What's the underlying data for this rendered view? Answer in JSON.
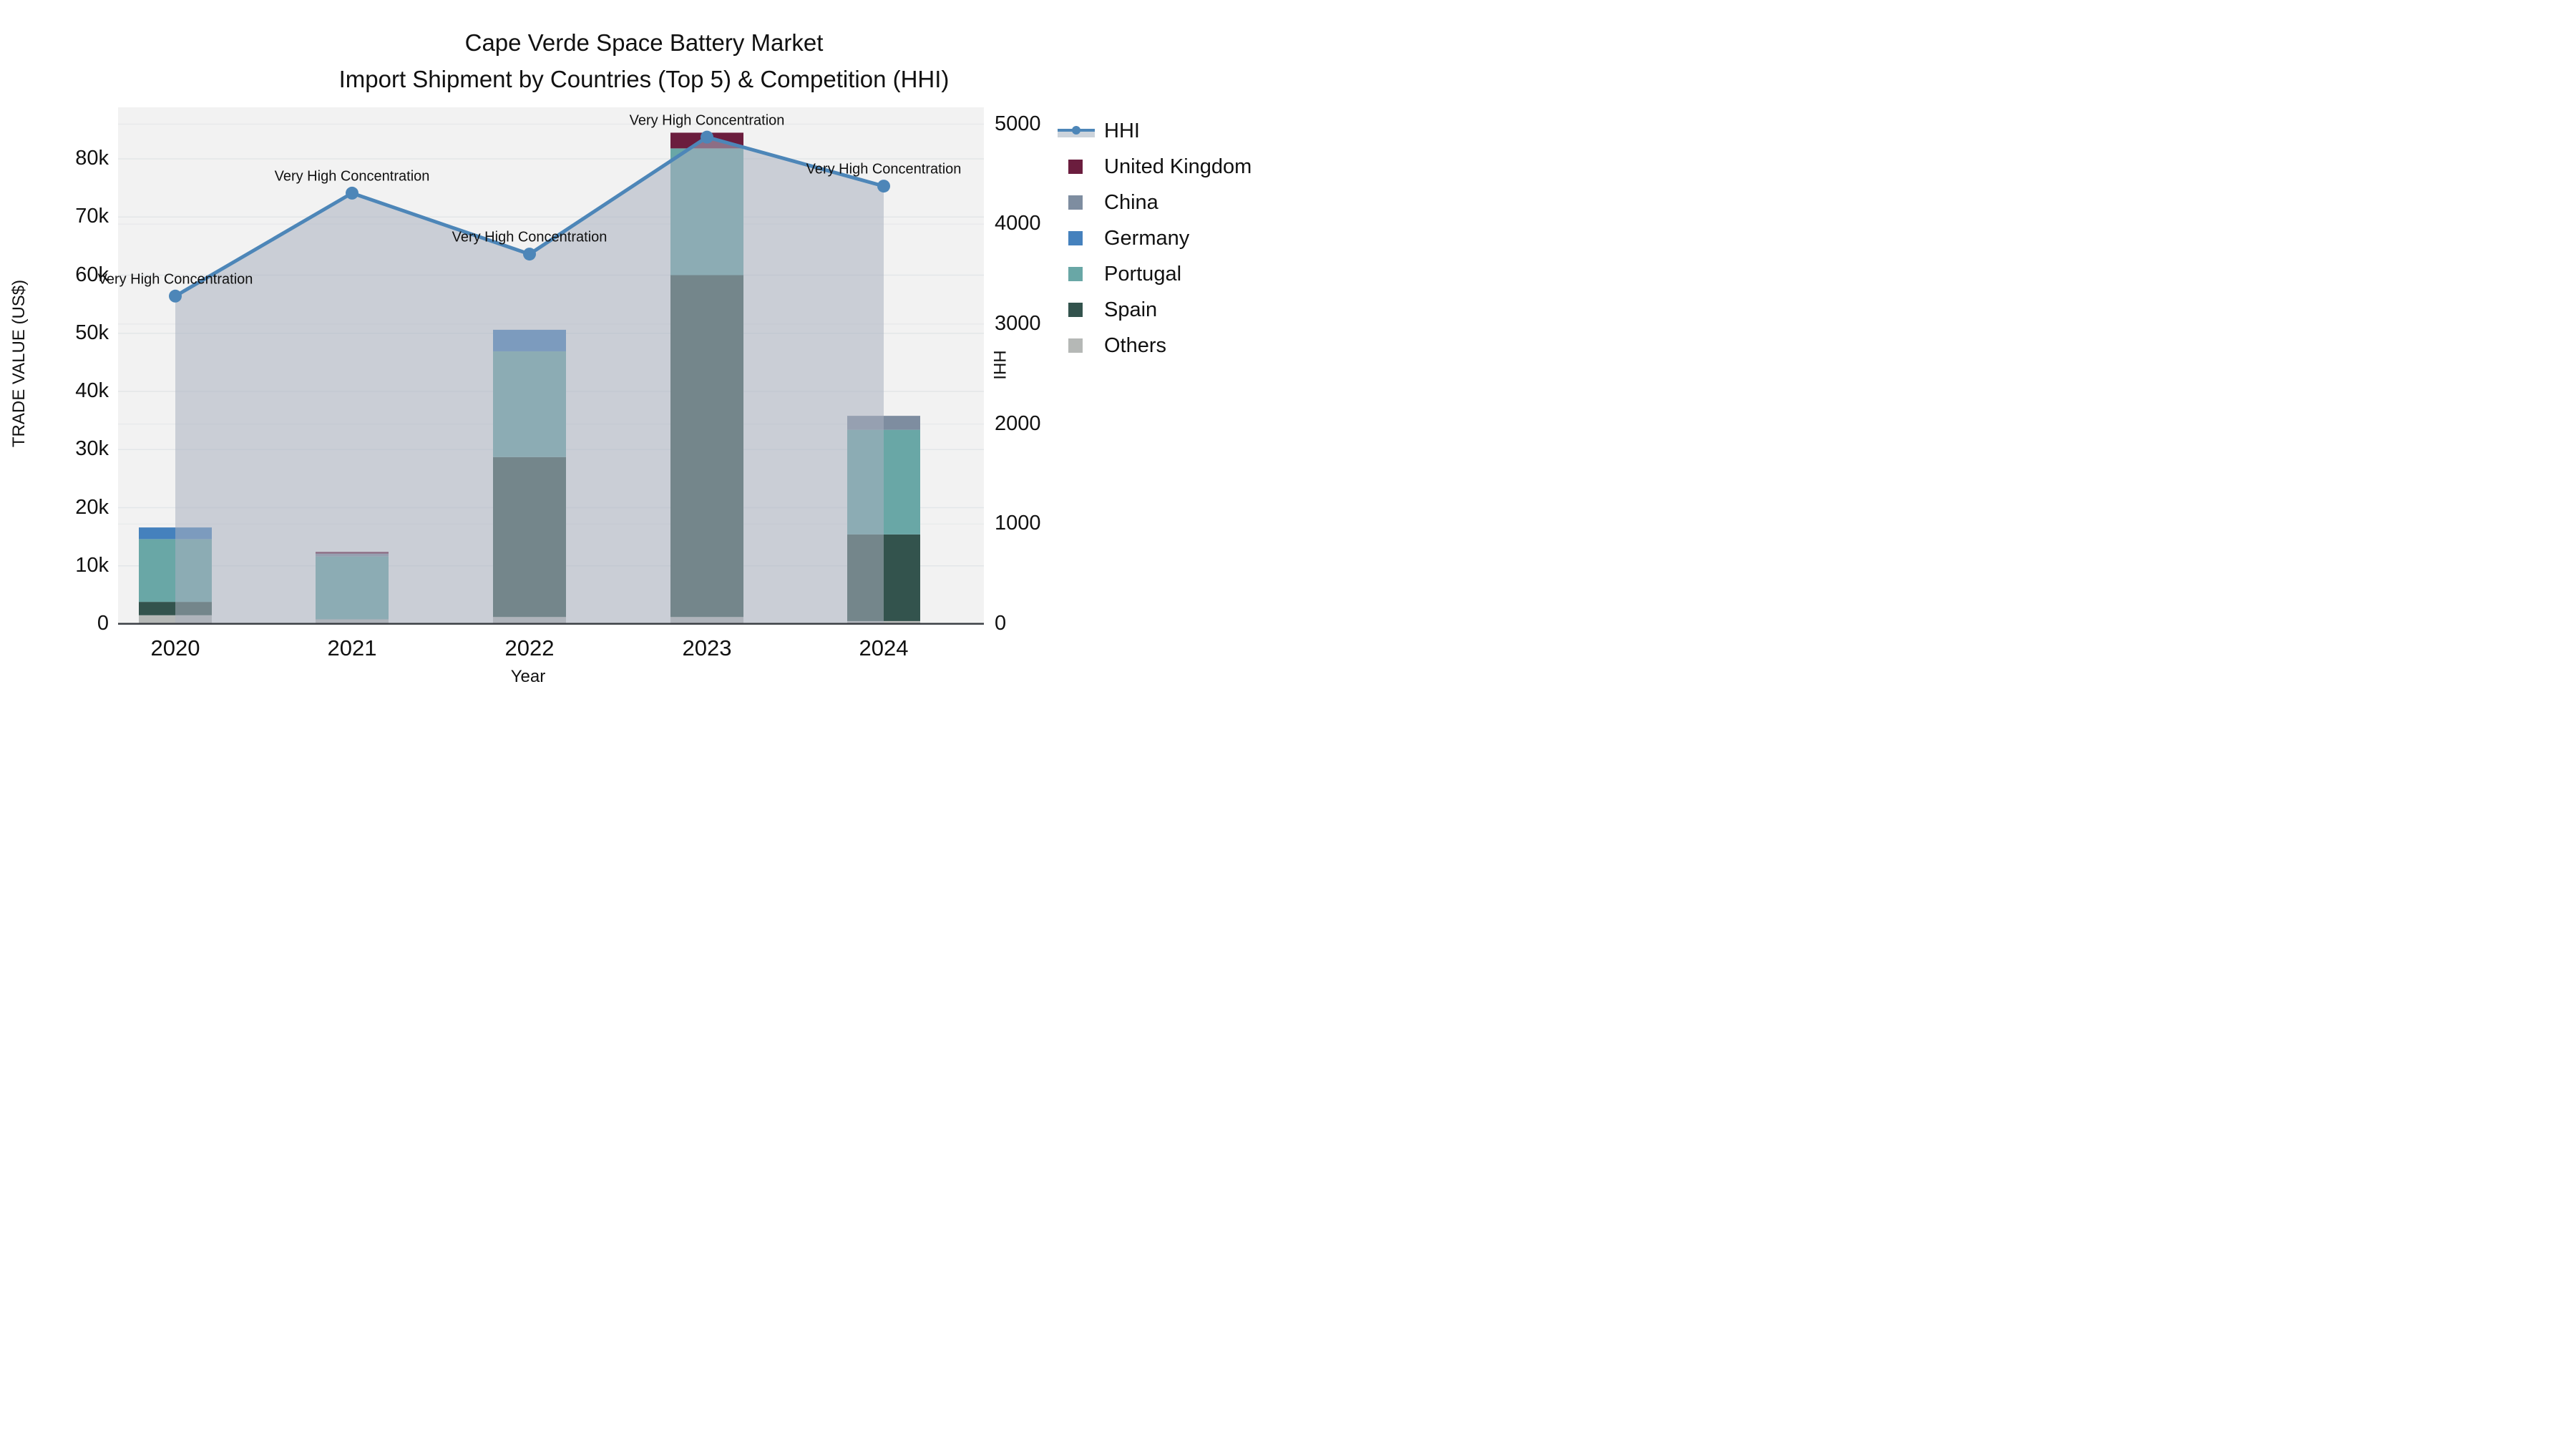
{
  "title": {
    "line1": "Cape Verde Space Battery Market",
    "line2": "Import Shipment by Countries (Top 5) & Competition (HHI)"
  },
  "axes": {
    "left": {
      "title": "TRADE VALUE (US$)",
      "ticks": [
        "0",
        "10k",
        "20k",
        "30k",
        "40k",
        "50k",
        "60k",
        "70k",
        "80k"
      ]
    },
    "right": {
      "title": "HHI",
      "ticks": [
        "0",
        "1000",
        "2000",
        "3000",
        "4000",
        "5000"
      ]
    },
    "x": {
      "title": "Year",
      "ticks": [
        "2020",
        "2021",
        "2022",
        "2023",
        "2024"
      ]
    }
  },
  "legend": {
    "items": [
      {
        "label": "HHI",
        "type": "line",
        "color": "#4d86b8"
      },
      {
        "label": "United Kingdom",
        "type": "swatch",
        "color": "#6b1d3e"
      },
      {
        "label": "China",
        "type": "swatch",
        "color": "#7e8da0"
      },
      {
        "label": "Germany",
        "type": "swatch",
        "color": "#4581bd"
      },
      {
        "label": "Portugal",
        "type": "swatch",
        "color": "#69a7a6"
      },
      {
        "label": "Spain",
        "type": "swatch",
        "color": "#33534d"
      },
      {
        "label": "Others",
        "type": "swatch",
        "color": "#b5b8b6"
      }
    ]
  },
  "chart_data": {
    "type": "bar+line",
    "title": "Cape Verde Space Battery Market — Import Shipment by Countries (Top 5) & Competition (HHI)",
    "categories": [
      "2020",
      "2021",
      "2022",
      "2023",
      "2024"
    ],
    "stack_order_bottom_to_top": [
      "Others",
      "Spain",
      "Portugal",
      "Germany",
      "China",
      "United Kingdom"
    ],
    "series": [
      {
        "name": "United Kingdom",
        "color": "#6b1d3e",
        "values": [
          0,
          300,
          0,
          2700,
          0
        ]
      },
      {
        "name": "China",
        "color": "#7e8da0",
        "values": [
          0,
          500,
          0,
          0,
          2400
        ]
      },
      {
        "name": "Germany",
        "color": "#4581bd",
        "values": [
          2000,
          0,
          3700,
          0,
          0
        ]
      },
      {
        "name": "Portugal",
        "color": "#69a7a6",
        "values": [
          10800,
          10800,
          18200,
          21800,
          18000
        ]
      },
      {
        "name": "Spain",
        "color": "#33534d",
        "values": [
          2300,
          0,
          27500,
          58800,
          14900
        ]
      },
      {
        "name": "Others",
        "color": "#b5b8b6",
        "values": [
          1500,
          800,
          1200,
          1200,
          500
        ]
      }
    ],
    "bar_totals": [
      16600,
      12400,
      50600,
      84500,
      35800
    ],
    "hhi": {
      "name": "HHI",
      "color": "#4d86b8",
      "area_color": "#a9b1bf",
      "values": [
        3280,
        4310,
        3700,
        4870,
        4380
      ]
    },
    "annotations": [
      "Very High Concentration",
      "Very High Concentration",
      "Very High Concentration",
      "Very High Concentration",
      "Very High Concentration"
    ],
    "xlabel": "Year",
    "ylabel_left": "TRADE VALUE (US$)",
    "ylabel_right": "HHI",
    "ylim_left": [
      0,
      88900
    ],
    "ylim_right": [
      0,
      5172
    ],
    "grid": true,
    "legend_position": "right"
  }
}
